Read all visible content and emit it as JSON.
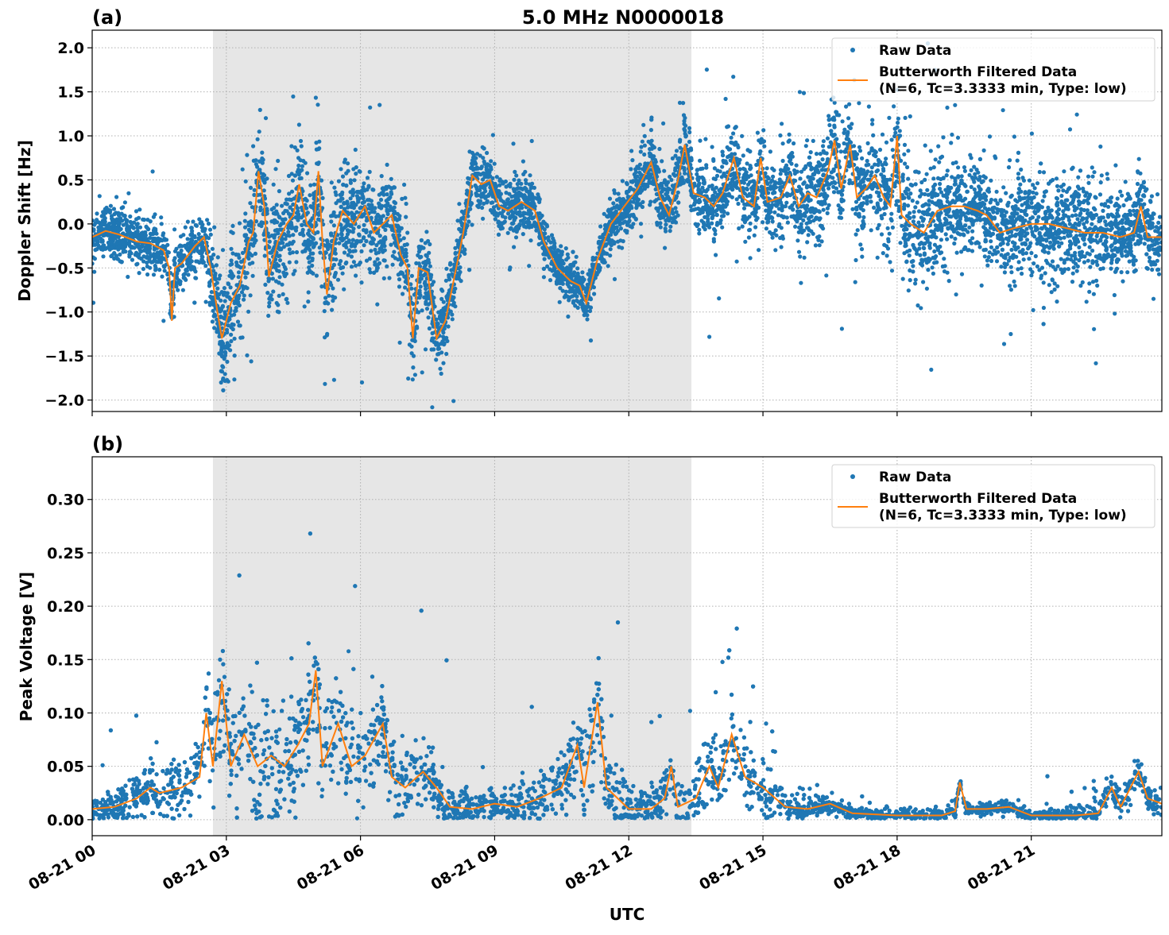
{
  "chart_data": [
    {
      "type": "scatter",
      "panel_label": "(a)",
      "title": "5.0 MHz N0000018",
      "xlabel": "",
      "ylabel": "Doppler Shift [Hz]",
      "ylim": [
        -2.13,
        2.2
      ],
      "xlim_hours": [
        0,
        23.92
      ],
      "yticks": [
        -2.0,
        -1.5,
        -1.0,
        -0.5,
        0.0,
        0.5,
        1.0,
        1.5,
        2.0
      ],
      "ytick_labels": [
        "−2.0",
        "−1.5",
        "−1.0",
        "−0.5",
        "0.0",
        "0.5",
        "1.0",
        "1.5",
        "2.0"
      ],
      "grid": true,
      "shaded_region_hours": [
        2.7,
        13.4
      ],
      "legend_placement": "top-right",
      "legend": [
        "Raw Data",
        "Butterworth Filtered Data",
        "(N=6, Tc=3.3333 min, Type: low)"
      ],
      "series": [
        {
          "name": "Butterworth Filtered Data",
          "kind": "line",
          "color": "#ff7f0e",
          "points": [
            [
              0,
              -0.15
            ],
            [
              0.3,
              -0.08
            ],
            [
              0.6,
              -0.12
            ],
            [
              1.0,
              -0.2
            ],
            [
              1.3,
              -0.22
            ],
            [
              1.6,
              -0.3
            ],
            [
              1.72,
              -0.5
            ],
            [
              1.78,
              -1.1
            ],
            [
              1.85,
              -0.5
            ],
            [
              2.0,
              -0.45
            ],
            [
              2.3,
              -0.25
            ],
            [
              2.5,
              -0.15
            ],
            [
              2.65,
              -0.5
            ],
            [
              2.8,
              -1.0
            ],
            [
              2.9,
              -1.3
            ],
            [
              3.1,
              -0.9
            ],
            [
              3.3,
              -0.7
            ],
            [
              3.5,
              -0.2
            ],
            [
              3.6,
              -0.1
            ],
            [
              3.72,
              0.6
            ],
            [
              3.85,
              0.2
            ],
            [
              3.95,
              -0.6
            ],
            [
              4.15,
              -0.2
            ],
            [
              4.35,
              0.0
            ],
            [
              4.5,
              0.1
            ],
            [
              4.63,
              0.45
            ],
            [
              4.8,
              0.0
            ],
            [
              4.95,
              -0.1
            ],
            [
              5.06,
              0.6
            ],
            [
              5.15,
              -0.2
            ],
            [
              5.25,
              -0.8
            ],
            [
              5.4,
              -0.2
            ],
            [
              5.6,
              0.15
            ],
            [
              5.85,
              0.0
            ],
            [
              6.1,
              0.2
            ],
            [
              6.3,
              -0.1
            ],
            [
              6.5,
              0.0
            ],
            [
              6.7,
              0.1
            ],
            [
              6.9,
              -0.35
            ],
            [
              7.05,
              -0.5
            ],
            [
              7.17,
              -1.3
            ],
            [
              7.3,
              -0.5
            ],
            [
              7.5,
              -0.55
            ],
            [
              7.7,
              -1.3
            ],
            [
              7.9,
              -1.1
            ],
            [
              8.1,
              -0.6
            ],
            [
              8.3,
              -0.1
            ],
            [
              8.5,
              0.55
            ],
            [
              8.7,
              0.45
            ],
            [
              8.9,
              0.5
            ],
            [
              9.1,
              0.2
            ],
            [
              9.3,
              0.15
            ],
            [
              9.6,
              0.25
            ],
            [
              9.9,
              0.15
            ],
            [
              10.1,
              -0.2
            ],
            [
              10.4,
              -0.5
            ],
            [
              10.7,
              -0.65
            ],
            [
              10.9,
              -0.7
            ],
            [
              11.05,
              -0.9
            ],
            [
              11.3,
              -0.4
            ],
            [
              11.6,
              0.0
            ],
            [
              11.9,
              0.2
            ],
            [
              12.2,
              0.4
            ],
            [
              12.5,
              0.7
            ],
            [
              12.7,
              0.3
            ],
            [
              12.9,
              0.1
            ],
            [
              13.1,
              0.5
            ],
            [
              13.25,
              0.9
            ],
            [
              13.45,
              0.35
            ],
            [
              13.7,
              0.3
            ],
            [
              13.9,
              0.2
            ],
            [
              14.1,
              0.35
            ],
            [
              14.35,
              0.75
            ],
            [
              14.55,
              0.3
            ],
            [
              14.8,
              0.2
            ],
            [
              14.95,
              0.75
            ],
            [
              15.1,
              0.25
            ],
            [
              15.4,
              0.3
            ],
            [
              15.6,
              0.55
            ],
            [
              15.8,
              0.2
            ],
            [
              16.0,
              0.35
            ],
            [
              16.2,
              0.3
            ],
            [
              16.45,
              0.6
            ],
            [
              16.6,
              0.95
            ],
            [
              16.75,
              0.4
            ],
            [
              16.95,
              0.9
            ],
            [
              17.1,
              0.3
            ],
            [
              17.3,
              0.4
            ],
            [
              17.5,
              0.55
            ],
            [
              17.7,
              0.3
            ],
            [
              17.85,
              0.2
            ],
            [
              18.0,
              1.0
            ],
            [
              18.1,
              0.1
            ],
            [
              18.3,
              0.0
            ],
            [
              18.6,
              -0.1
            ],
            [
              18.9,
              0.15
            ],
            [
              19.2,
              0.2
            ],
            [
              19.5,
              0.2
            ],
            [
              19.8,
              0.15
            ],
            [
              20.0,
              0.1
            ],
            [
              20.3,
              -0.1
            ],
            [
              20.6,
              -0.05
            ],
            [
              21.0,
              0.0
            ],
            [
              21.4,
              0.0
            ],
            [
              21.8,
              -0.05
            ],
            [
              22.2,
              -0.1
            ],
            [
              22.6,
              -0.1
            ],
            [
              23.0,
              -0.15
            ],
            [
              23.3,
              -0.1
            ],
            [
              23.45,
              0.2
            ],
            [
              23.6,
              -0.15
            ],
            [
              23.92,
              -0.15
            ]
          ]
        },
        {
          "name": "Raw Data",
          "kind": "scatter",
          "color": "#1f77b4",
          "spread": [
            [
              0,
              0.15
            ],
            [
              2.5,
              0.2
            ],
            [
              3,
              0.45
            ],
            [
              5.5,
              0.4
            ],
            [
              7,
              0.3
            ],
            [
              8.5,
              0.2
            ],
            [
              11,
              0.15
            ],
            [
              13,
              0.25
            ],
            [
              15,
              0.3
            ],
            [
              17.5,
              0.35
            ],
            [
              18.2,
              0.45
            ],
            [
              20,
              0.3
            ],
            [
              21,
              0.4
            ],
            [
              23.92,
              0.25
            ]
          ]
        }
      ]
    },
    {
      "type": "scatter",
      "panel_label": "(b)",
      "title": "",
      "xlabel": "UTC",
      "ylabel": "Peak Voltage [V]",
      "ylim": [
        -0.015,
        0.34
      ],
      "xlim_hours": [
        0,
        23.92
      ],
      "yticks": [
        0.0,
        0.05,
        0.1,
        0.15,
        0.2,
        0.25,
        0.3
      ],
      "ytick_labels": [
        "0.00",
        "0.05",
        "0.10",
        "0.15",
        "0.20",
        "0.25",
        "0.30"
      ],
      "xticks_hours": [
        0,
        3,
        6,
        9,
        12,
        15,
        18,
        21
      ],
      "xtick_labels": [
        "08-21 00",
        "08-21 03",
        "08-21 06",
        "08-21 09",
        "08-21 12",
        "08-21 15",
        "08-21 18",
        "08-21 21"
      ],
      "grid": true,
      "shaded_region_hours": [
        2.7,
        13.4
      ],
      "legend_placement": "top-right",
      "legend": [
        "Raw Data",
        "Butterworth Filtered Data",
        "(N=6, Tc=3.3333 min, Type: low)"
      ],
      "series": [
        {
          "name": "Butterworth Filtered Data",
          "kind": "line",
          "color": "#ff7f0e",
          "points": [
            [
              0,
              0.01
            ],
            [
              0.5,
              0.012
            ],
            [
              1.0,
              0.02
            ],
            [
              1.3,
              0.03
            ],
            [
              1.5,
              0.025
            ],
            [
              2.0,
              0.03
            ],
            [
              2.4,
              0.04
            ],
            [
              2.55,
              0.1
            ],
            [
              2.7,
              0.05
            ],
            [
              2.9,
              0.13
            ],
            [
              3.1,
              0.05
            ],
            [
              3.4,
              0.08
            ],
            [
              3.7,
              0.05
            ],
            [
              4.0,
              0.06
            ],
            [
              4.3,
              0.05
            ],
            [
              4.6,
              0.07
            ],
            [
              4.85,
              0.09
            ],
            [
              5.0,
              0.14
            ],
            [
              5.15,
              0.05
            ],
            [
              5.5,
              0.09
            ],
            [
              5.8,
              0.05
            ],
            [
              6.1,
              0.06
            ],
            [
              6.5,
              0.09
            ],
            [
              6.7,
              0.04
            ],
            [
              7.0,
              0.03
            ],
            [
              7.4,
              0.045
            ],
            [
              7.7,
              0.03
            ],
            [
              8.0,
              0.012
            ],
            [
              8.5,
              0.01
            ],
            [
              9.0,
              0.015
            ],
            [
              9.5,
              0.012
            ],
            [
              10.0,
              0.02
            ],
            [
              10.5,
              0.03
            ],
            [
              10.85,
              0.07
            ],
            [
              11.0,
              0.03
            ],
            [
              11.3,
              0.11
            ],
            [
              11.5,
              0.03
            ],
            [
              12.0,
              0.01
            ],
            [
              12.5,
              0.01
            ],
            [
              12.8,
              0.02
            ],
            [
              12.95,
              0.05
            ],
            [
              13.1,
              0.012
            ],
            [
              13.5,
              0.02
            ],
            [
              13.8,
              0.05
            ],
            [
              14.0,
              0.03
            ],
            [
              14.3,
              0.08
            ],
            [
              14.6,
              0.04
            ],
            [
              15.0,
              0.03
            ],
            [
              15.5,
              0.012
            ],
            [
              16.0,
              0.01
            ],
            [
              16.5,
              0.015
            ],
            [
              17.0,
              0.006
            ],
            [
              18.0,
              0.004
            ],
            [
              19.0,
              0.004
            ],
            [
              19.3,
              0.008
            ],
            [
              19.4,
              0.035
            ],
            [
              19.55,
              0.01
            ],
            [
              20.0,
              0.01
            ],
            [
              20.5,
              0.012
            ],
            [
              21.0,
              0.004
            ],
            [
              22.0,
              0.004
            ],
            [
              22.5,
              0.006
            ],
            [
              22.8,
              0.03
            ],
            [
              23.0,
              0.012
            ],
            [
              23.4,
              0.045
            ],
            [
              23.6,
              0.02
            ],
            [
              23.92,
              0.015
            ]
          ]
        },
        {
          "name": "Raw Data",
          "kind": "scatter",
          "color": "#1f77b4",
          "spread": [
            [
              0,
              0.01
            ],
            [
              2.5,
              0.03
            ],
            [
              3,
              0.05
            ],
            [
              6,
              0.045
            ],
            [
              7.5,
              0.025
            ],
            [
              8.5,
              0.012
            ],
            [
              10.5,
              0.02
            ],
            [
              11.3,
              0.04
            ],
            [
              12.3,
              0.015
            ],
            [
              14.2,
              0.035
            ],
            [
              15.5,
              0.01
            ],
            [
              17,
              0.005
            ],
            [
              21,
              0.005
            ],
            [
              23.92,
              0.012
            ]
          ]
        }
      ]
    }
  ]
}
